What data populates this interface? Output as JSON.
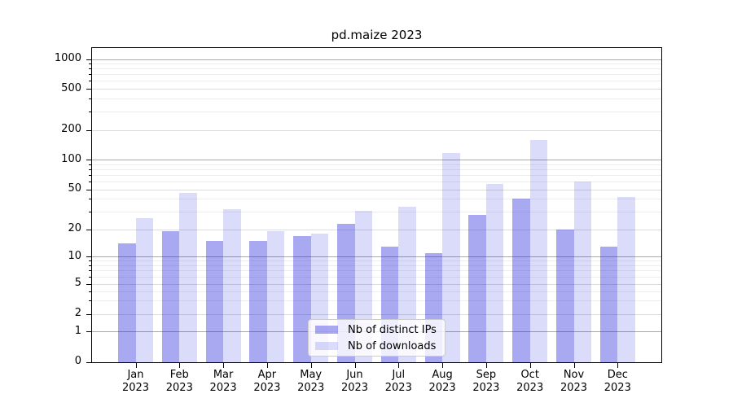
{
  "chart_data": {
    "type": "bar",
    "title": "pd.maize 2023",
    "x_months": [
      "Jan",
      "Feb",
      "Mar",
      "Apr",
      "May",
      "Jun",
      "Jul",
      "Aug",
      "Sep",
      "Oct",
      "Nov",
      "Dec"
    ],
    "x_year": "2023",
    "series": [
      {
        "name": "Nb of distinct IPs",
        "color": "rgba(34,34,221,0.39)",
        "values": [
          14,
          19,
          15,
          15,
          17,
          23,
          13,
          11,
          28,
          41,
          20,
          13
        ]
      },
      {
        "name": "Nb of downloads",
        "color": "rgba(34,34,221,0.16)",
        "values": [
          26,
          46,
          32,
          19,
          18,
          31,
          34,
          118,
          57,
          160,
          61,
          42
        ]
      }
    ],
    "yticks": [
      0,
      1,
      2,
      5,
      10,
      20,
      50,
      100,
      200,
      500,
      1000
    ],
    "yscale": "symlog",
    "ylim": [
      0,
      1300
    ],
    "grid": true,
    "legend_position": "lower center",
    "colors": {
      "bar_base": "#2222dd",
      "grid_major": "#a9a9a9",
      "grid_sub": "#dcdcdc",
      "grid_minor": "#ededed",
      "axis": "#000000"
    }
  }
}
